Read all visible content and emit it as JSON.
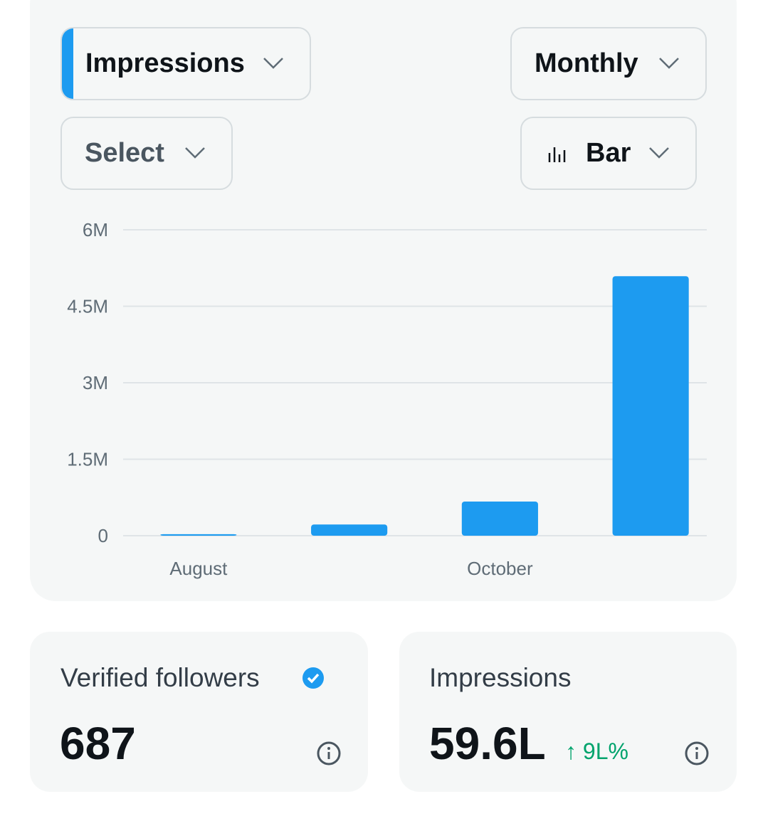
{
  "controls": {
    "metric": "Impressions",
    "period": "Monthly",
    "filter": "Select",
    "chart_type": "Bar"
  },
  "chart_data": {
    "type": "bar",
    "categories": [
      "August",
      null,
      "October",
      null
    ],
    "values": [
      30000,
      220000,
      670000,
      5090000
    ],
    "color": "#1d9bf0",
    "ylim": [
      0,
      6000000
    ],
    "yticks": [
      0,
      {
        "value": 1500000,
        "label": "1.5M"
      },
      {
        "value": 3000000,
        "label": "3M"
      },
      {
        "value": 4500000,
        "label": "4.5M"
      },
      {
        "value": 6000000,
        "label": "6M"
      }
    ],
    "grid": true
  },
  "cards": [
    {
      "title": "Verified followers",
      "value": 687
    },
    {
      "title": "Impressions",
      "value": "59.6L",
      "change": "↑ 9L%"
    }
  ]
}
